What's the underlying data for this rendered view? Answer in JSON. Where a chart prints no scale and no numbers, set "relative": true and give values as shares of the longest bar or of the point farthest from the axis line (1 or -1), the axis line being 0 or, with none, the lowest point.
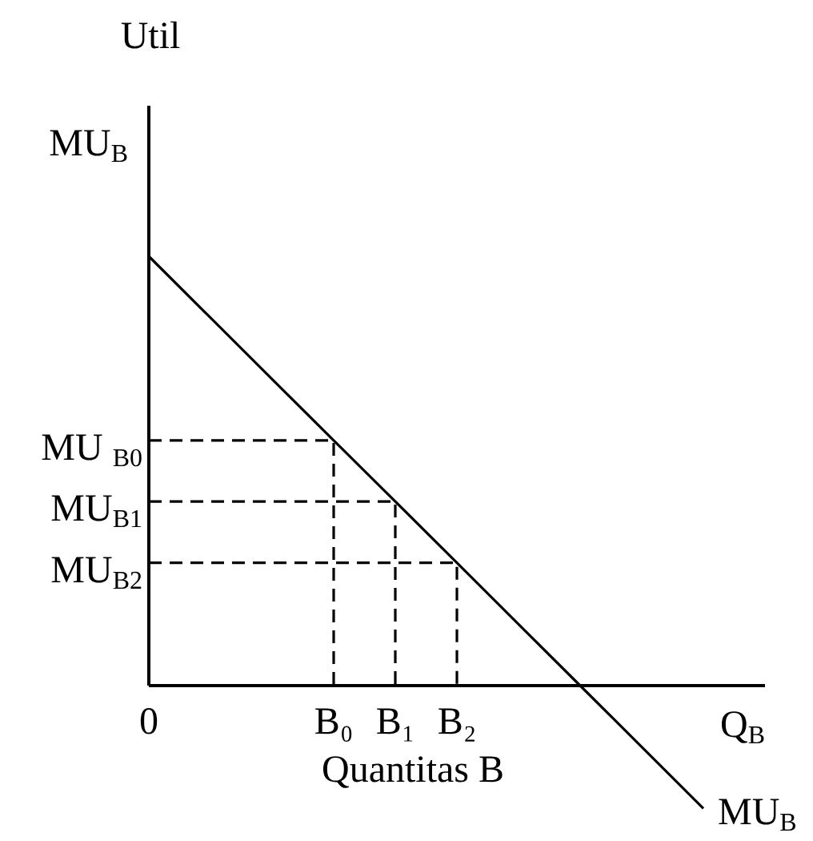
{
  "chart_data": {
    "type": "line",
    "relative": true,
    "xlabel": "Quantitas B",
    "categories": [
      "0",
      null,
      null,
      "B₀",
      "B₁",
      "B₂",
      null,
      null,
      null,
      null
    ],
    "series": [
      {
        "name": "MU$_{B}$",
        "color": "#000000",
        "values": [
          1,
          0.857,
          0.714,
          0.571,
          0.429,
          0.286,
          0.143,
          0,
          -0.143,
          -0.286
        ]
      }
    ],
    "ref_lines": [
      {
        "axis": "y",
        "value": 0.571,
        "label": "MU $_{B0}$",
        "color": "#000000",
        "line_style": "dashed"
      },
      {
        "axis": "y",
        "value": 0.429,
        "label": "MU$_{B1}$",
        "color": "#000000",
        "line_style": "dashed"
      },
      {
        "axis": "y",
        "value": 0.286,
        "label": "MU$_{B2}$",
        "color": "#000000",
        "line_style": "dashed"
      }
    ],
    "annotations": [
      "Util",
      "MU$_{B}$",
      "Q$_{B}$"
    ]
  }
}
